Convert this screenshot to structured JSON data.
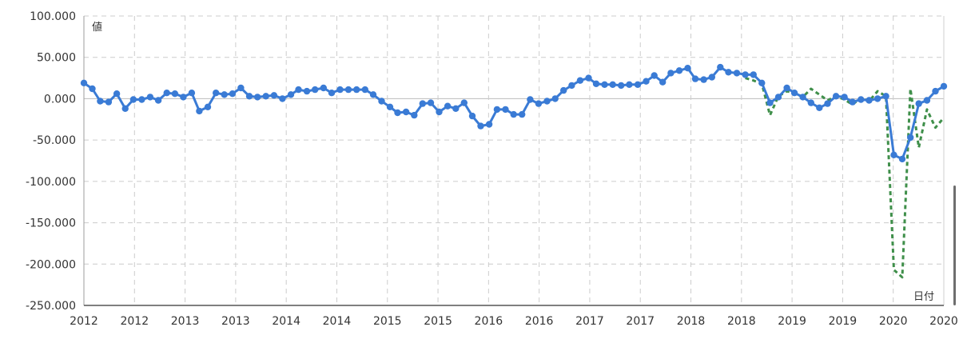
{
  "chart_data": {
    "type": "line",
    "title": "",
    "ylabel": "値",
    "xlabel": "日付",
    "ylim": [
      -250,
      100
    ],
    "grid": true,
    "legend": "none",
    "y_ticks": [
      "100.000",
      "50.000",
      "0.000",
      "-50.000",
      "-100.000",
      "-150.000",
      "-200.000",
      "-250.000"
    ],
    "x_tick_labels": [
      "2012",
      "2012",
      "2013",
      "2013",
      "2014",
      "2014",
      "2015",
      "2015",
      "2016",
      "2016",
      "2017",
      "2017",
      "2018",
      "2018",
      "2019",
      "2019",
      "2020",
      "2020"
    ],
    "colors": {
      "actual": "#3a7bd5",
      "forecast": "#3f8f4a",
      "grid": "#cccccc",
      "axis": "#555555"
    },
    "series": [
      {
        "style": "solid-markers",
        "x": [
          "2012-01",
          "2012-02",
          "2012-03",
          "2012-04",
          "2012-05",
          "2012-06",
          "2012-07",
          "2012-08",
          "2012-09",
          "2012-10",
          "2012-11",
          "2012-12",
          "2013-01",
          "2013-02",
          "2013-03",
          "2013-04",
          "2013-05",
          "2013-06",
          "2013-07",
          "2013-08",
          "2013-09",
          "2013-10",
          "2013-11",
          "2013-12",
          "2014-01",
          "2014-02",
          "2014-03",
          "2014-04",
          "2014-05",
          "2014-06",
          "2014-07",
          "2014-08",
          "2014-09",
          "2014-10",
          "2014-11",
          "2014-12",
          "2015-01",
          "2015-02",
          "2015-03",
          "2015-04",
          "2015-05",
          "2015-06",
          "2015-07",
          "2015-08",
          "2015-09",
          "2015-10",
          "2015-11",
          "2015-12",
          "2016-01",
          "2016-02",
          "2016-03",
          "2016-04",
          "2016-05",
          "2016-06",
          "2016-07",
          "2016-08",
          "2016-09",
          "2016-10",
          "2016-11",
          "2016-12",
          "2017-01",
          "2017-02",
          "2017-03",
          "2017-04",
          "2017-05",
          "2017-06",
          "2017-07",
          "2017-08",
          "2017-09",
          "2017-10",
          "2017-11",
          "2017-12",
          "2018-01",
          "2018-02",
          "2018-03",
          "2018-04",
          "2018-05",
          "2018-06",
          "2018-07",
          "2018-08",
          "2018-09",
          "2018-10",
          "2018-11",
          "2018-12",
          "2019-01",
          "2019-02",
          "2019-03",
          "2019-04",
          "2019-05",
          "2019-06",
          "2019-07",
          "2019-08",
          "2019-09",
          "2019-10",
          "2019-11",
          "2019-12",
          "2020-01",
          "2020-02",
          "2020-03",
          "2020-04",
          "2020-05",
          "2020-06",
          "2020-07",
          "2020-08",
          "2020-09"
        ],
        "values": [
          19,
          12,
          -3,
          -4,
          6,
          -12,
          -1,
          -1,
          2,
          -2,
          7,
          6,
          2,
          7,
          -15,
          -10,
          7,
          5,
          6,
          13,
          3,
          2,
          3,
          4,
          0,
          5,
          11,
          9,
          11,
          13,
          7,
          11,
          11,
          11,
          11,
          5,
          -3,
          -10,
          -17,
          -16,
          -20,
          -6,
          -5,
          -16,
          -9,
          -12,
          -5,
          -21,
          -33,
          -31,
          -13,
          -13,
          -19,
          -19,
          -1,
          -6,
          -3,
          0,
          10,
          16,
          22,
          25,
          18,
          17,
          17,
          16,
          17,
          17,
          21,
          28,
          20,
          31,
          34,
          37,
          24,
          23,
          26,
          38,
          32,
          31,
          29,
          29,
          19,
          -5,
          2,
          13,
          7,
          2,
          -5,
          -11,
          -6,
          3,
          2,
          -4,
          -1,
          -2,
          0,
          3,
          -68,
          -73,
          -47,
          -6,
          -2,
          9,
          15
        ]
      },
      {
        "style": "dashed",
        "x": [
          "2018-09",
          "2018-10",
          "2018-11",
          "2018-12",
          "2019-01",
          "2019-02",
          "2019-03",
          "2019-04",
          "2019-05",
          "2019-06",
          "2019-07",
          "2019-08",
          "2019-09",
          "2019-10",
          "2019-11",
          "2019-12",
          "2020-01",
          "2020-02",
          "2020-03",
          "2020-04",
          "2020-05",
          "2020-06",
          "2020-07",
          "2020-08",
          "2020-09"
        ],
        "values": [
          25,
          22,
          18,
          -20,
          3,
          9,
          7,
          2,
          12,
          5,
          -2,
          3,
          -1,
          -7,
          1,
          -3,
          9,
          3,
          -207,
          -216,
          12,
          -59,
          -13,
          -35,
          -23
        ]
      }
    ]
  }
}
